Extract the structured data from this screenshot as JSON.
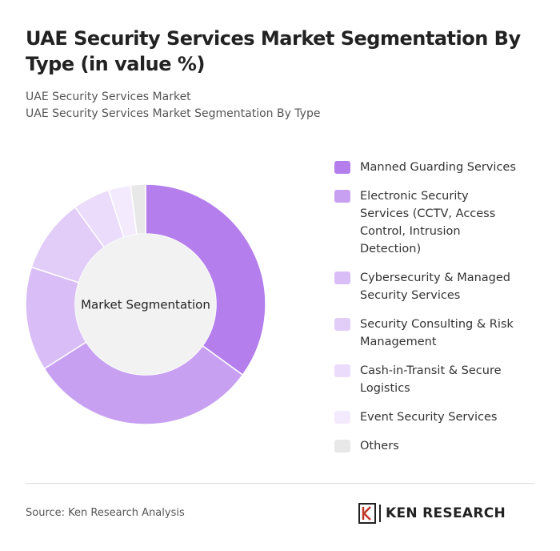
{
  "chart_data": {
    "type": "donut",
    "title": "UAE Security Services Market Segmentation By Type (in value %)",
    "subtitle": [
      "UAE Security Services Market",
      "UAE Security Services Market Segmentation By Type"
    ],
    "center_label": "Market Segmentation",
    "categories": [
      "Manned Guarding Services",
      "Electronic Security Services (CCTV, Access Control, Intrusion Detection)",
      "Cybersecurity & Managed Security Services",
      "Security Consulting & Risk Management",
      "Cash-in-Transit & Secure Logistics",
      "Event Security Services",
      "Others"
    ],
    "values": [
      35,
      31,
      14,
      10,
      5,
      3,
      2
    ],
    "colors": [
      "#b47fec",
      "#c8a0f2",
      "#d9bdf6",
      "#e2cdf8",
      "#eadcfa",
      "#f3ebfd",
      "#e8e8e8"
    ],
    "source": "Source: Ken Research Analysis",
    "logo_text": "KEN RESEARCH"
  }
}
